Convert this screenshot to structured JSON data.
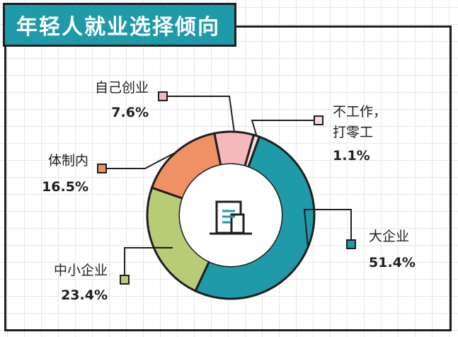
{
  "title": "年轻人就业选择倾向",
  "colors": {
    "accent": "#1e9aa9",
    "frame": "#1f1f1f"
  },
  "center_icon": "building-icon",
  "chart_data": {
    "type": "pie",
    "title": "年轻人就业选择倾向",
    "donut": true,
    "slices": [
      {
        "label": "大企业",
        "value": 51.4,
        "value_label": "51.4%",
        "color": "#1e9aa9"
      },
      {
        "label": "中小企业",
        "value": 23.4,
        "value_label": "23.4%",
        "color": "#b8cc75"
      },
      {
        "label": "体制内",
        "value": 16.5,
        "value_label": "16.5%",
        "color": "#ef9165"
      },
      {
        "label": "自己创业",
        "value": 7.6,
        "value_label": "7.6%",
        "color": "#f3b9bc"
      },
      {
        "label": "不工作，打零工",
        "label_lines": [
          "不工作，",
          "打零工"
        ],
        "value": 1.1,
        "value_label": "1.1%",
        "color": "#f8dada"
      }
    ]
  }
}
